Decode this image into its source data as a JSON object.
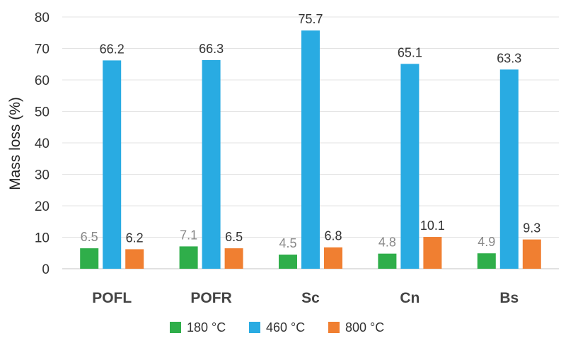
{
  "chart_data": {
    "type": "bar",
    "ylabel": "Mass loss (%)",
    "ylim": [
      0,
      80
    ],
    "yticks": [
      0,
      10,
      20,
      30,
      40,
      50,
      60,
      70,
      80
    ],
    "grid": true,
    "legend_position": "bottom",
    "categories": [
      "POFL",
      "POFR",
      "Sc",
      "Cn",
      "Bs"
    ],
    "series": [
      {
        "name": "180 °C",
        "color": "#2fae4a",
        "label_color": "#888888",
        "values": [
          6.5,
          7.1,
          4.5,
          4.8,
          4.9
        ]
      },
      {
        "name": "460 °C",
        "color": "#29abe2",
        "label_color": "#333333",
        "values": [
          66.2,
          66.3,
          75.7,
          65.1,
          63.3
        ]
      },
      {
        "name": "800 °C",
        "color": "#f07f31",
        "label_color": "#333333",
        "values": [
          6.2,
          6.5,
          6.8,
          10.1,
          9.3
        ]
      }
    ]
  }
}
